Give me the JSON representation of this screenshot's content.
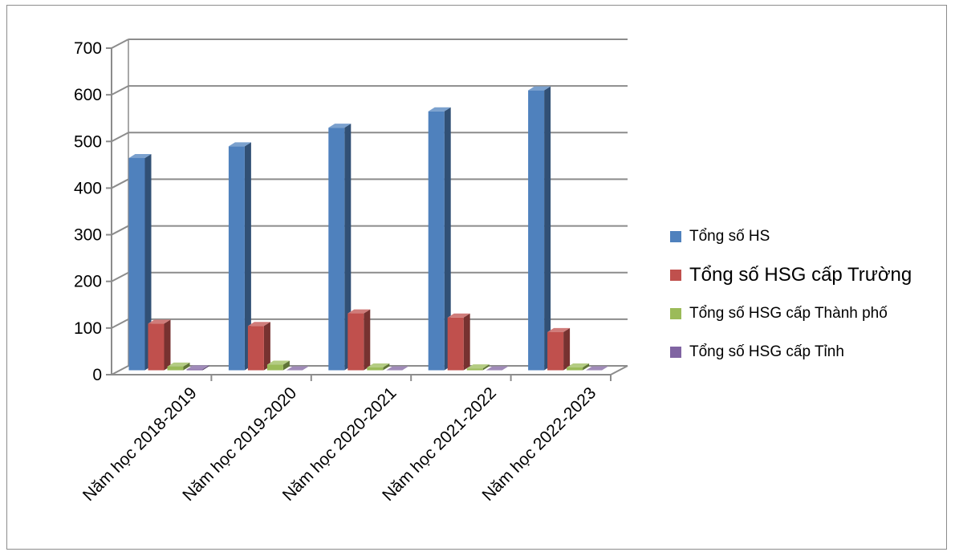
{
  "chart_data": {
    "type": "bar",
    "title": "",
    "xlabel": "",
    "ylabel": "",
    "categories": [
      "Năm học 2018-2019",
      "Năm học 2019-2020",
      "Năm học 2020-2021",
      "Năm học 2021-2022",
      "Năm học 2022-2023"
    ],
    "series": [
      {
        "name": "Tổng số HS",
        "color": "#4F81BD",
        "values": [
          455,
          480,
          520,
          555,
          600
        ]
      },
      {
        "name": "Tổng số HSG cấp Trường",
        "color": "#C0504D",
        "values": [
          100,
          95,
          122,
          113,
          82
        ]
      },
      {
        "name": "Tổng số HSG cấp Thành phố",
        "color": "#9BBB59",
        "values": [
          8,
          12,
          6,
          4,
          6
        ]
      },
      {
        "name": "Tổng số HSG cấp Tỉnh",
        "color": "#8064A2",
        "values": [
          2,
          0,
          0,
          0,
          0
        ]
      }
    ],
    "ylim": [
      0,
      700
    ],
    "yticks": [
      0,
      100,
      200,
      300,
      400,
      500,
      600,
      700
    ],
    "grid": true,
    "legend": "right",
    "style": "3d-clustered-column"
  }
}
